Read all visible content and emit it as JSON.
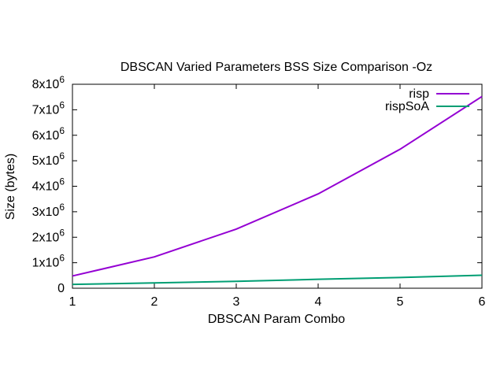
{
  "chart_data": {
    "type": "line",
    "title": "DBSCAN Varied Parameters BSS Size Comparison -Oz",
    "xlabel": "DBSCAN Param Combo",
    "ylabel": "Size (bytes)",
    "xlim": [
      1,
      6
    ],
    "ylim": [
      0,
      8000000
    ],
    "x": [
      1,
      2,
      3,
      4,
      5,
      6
    ],
    "xticks": [
      "1",
      "2",
      "3",
      "4",
      "5",
      "6"
    ],
    "yticks": [
      {
        "value": 0,
        "mantissa": "0",
        "exp": ""
      },
      {
        "value": 1000000,
        "mantissa": "1x10",
        "exp": "6"
      },
      {
        "value": 2000000,
        "mantissa": "2x10",
        "exp": "6"
      },
      {
        "value": 3000000,
        "mantissa": "3x10",
        "exp": "6"
      },
      {
        "value": 4000000,
        "mantissa": "4x10",
        "exp": "6"
      },
      {
        "value": 5000000,
        "mantissa": "5x10",
        "exp": "6"
      },
      {
        "value": 6000000,
        "mantissa": "6x10",
        "exp": "6"
      },
      {
        "value": 7000000,
        "mantissa": "7x10",
        "exp": "6"
      },
      {
        "value": 8000000,
        "mantissa": "8x10",
        "exp": "6"
      }
    ],
    "legend_position": "top-right",
    "grid": false,
    "series": [
      {
        "name": "risp",
        "color": "#9400d3",
        "values": [
          480000,
          1230000,
          2320000,
          3700000,
          5450000,
          7520000
        ]
      },
      {
        "name": "rispSoA",
        "color": "#009e73",
        "values": [
          150000,
          210000,
          270000,
          350000,
          420000,
          510000
        ]
      }
    ]
  }
}
